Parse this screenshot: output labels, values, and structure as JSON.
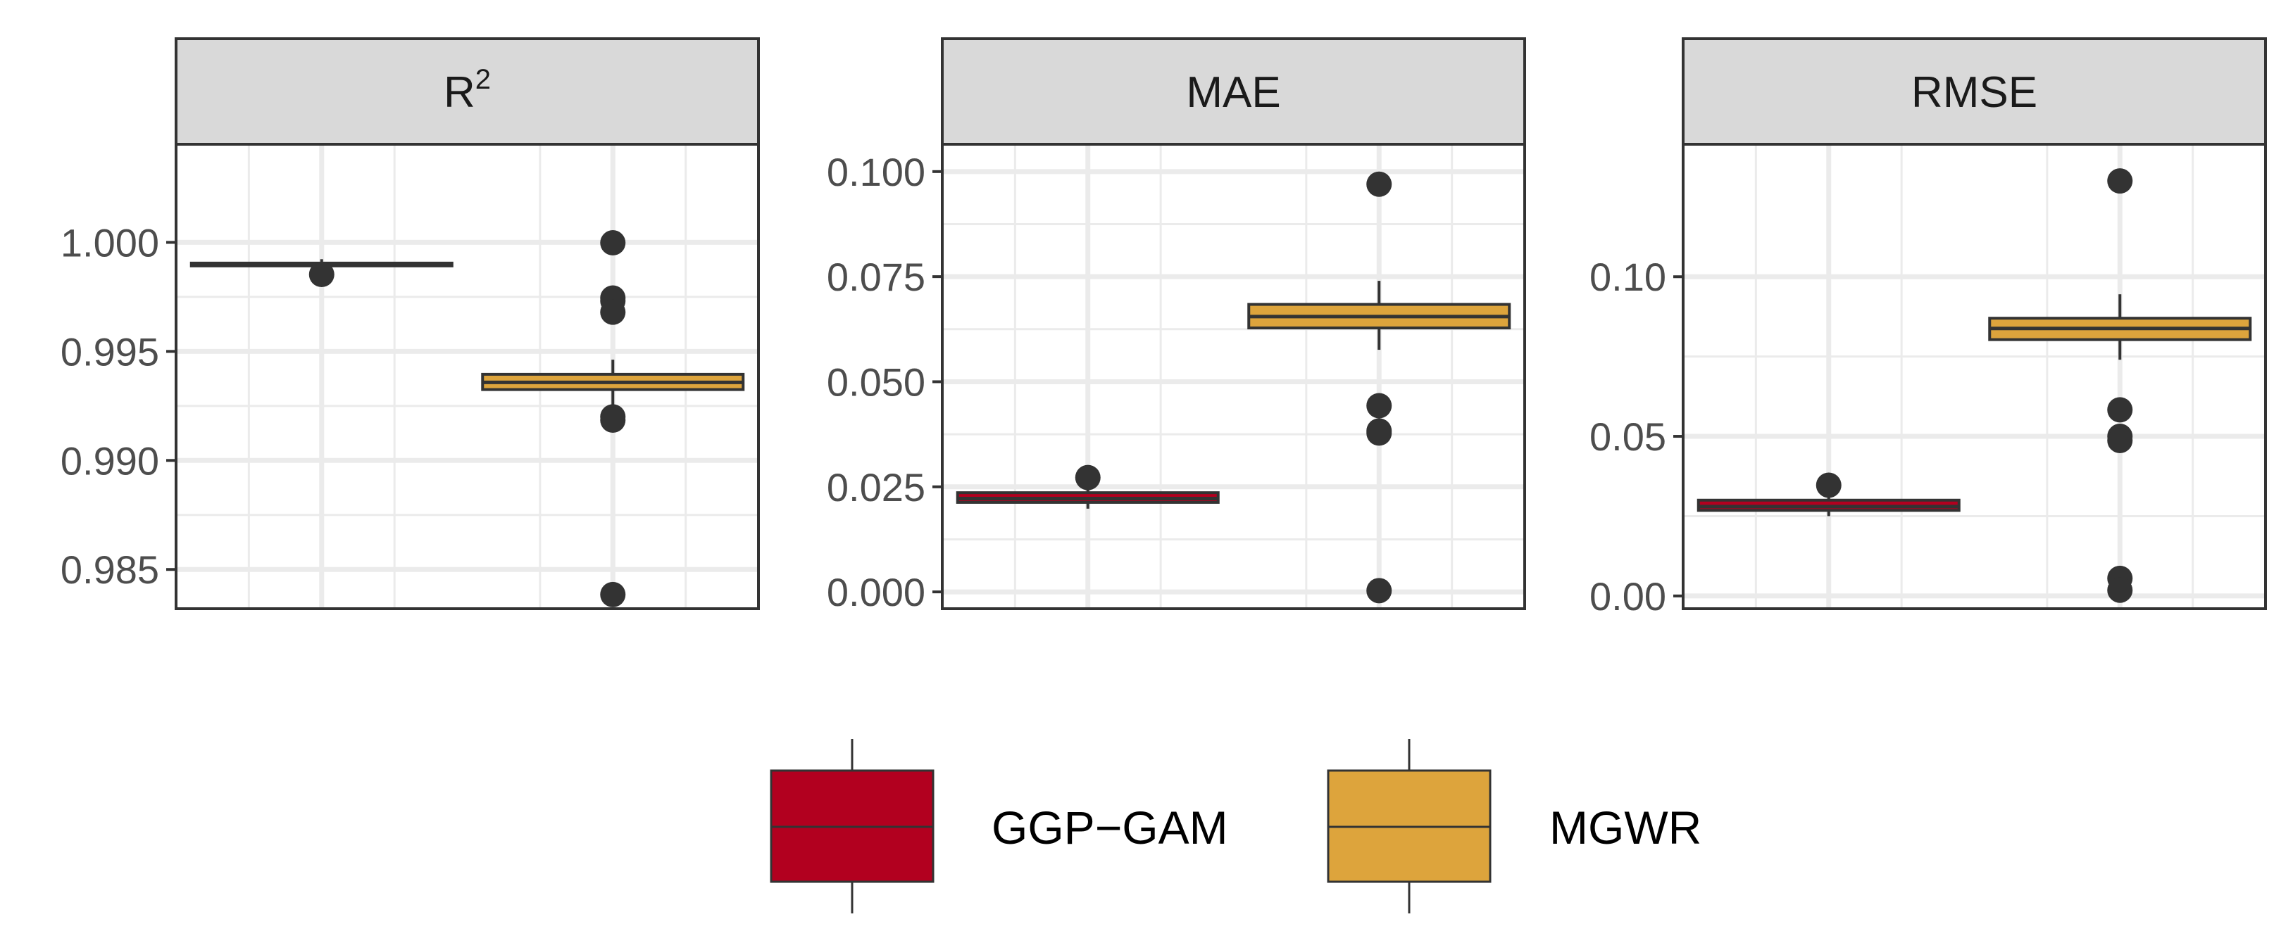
{
  "chart_data": {
    "type": "boxplot",
    "layout": "faceted",
    "colors": {
      "GGP-GAM": "#B2001F",
      "MGWR": "#DDA43C"
    },
    "legend": {
      "position": "bottom",
      "items": [
        {
          "label": "GGP−GAM",
          "color": "#B2001F"
        },
        {
          "label": "MGWR",
          "color": "#DDA43C"
        }
      ]
    },
    "facets": [
      {
        "title": "R",
        "title_superscript": "2",
        "ylim": [
          0.9832,
          1.0045
        ],
        "yticks": [
          0.985,
          0.99,
          0.995,
          1.0
        ],
        "ytick_labels": [
          "0.985",
          "0.990",
          "0.995",
          "1.000"
        ],
        "series": [
          {
            "name": "GGP-GAM",
            "q1": 0.999,
            "median": 0.99902,
            "q3": 0.99905,
            "whisker_low": 0.99895,
            "whisker_high": 0.99923,
            "outliers": [
              0.99853
            ]
          },
          {
            "name": "MGWR",
            "q1": 0.99325,
            "median": 0.99358,
            "q3": 0.99395,
            "whisker_low": 0.9921,
            "whisker_high": 0.99462,
            "outliers": [
              0.99998,
              0.99745,
              0.99732,
              0.9968,
              0.992,
              0.99185,
              0.98385
            ]
          }
        ]
      },
      {
        "title": "MAE",
        "ylim": [
          -0.004,
          0.1065
        ],
        "yticks": [
          0.0,
          0.025,
          0.05,
          0.075,
          0.1
        ],
        "ytick_labels": [
          "0.000",
          "0.025",
          "0.050",
          "0.075",
          "0.100"
        ],
        "series": [
          {
            "name": "GGP-GAM",
            "q1": 0.0213,
            "median": 0.0222,
            "q3": 0.0236,
            "whisker_low": 0.0198,
            "whisker_high": 0.0252,
            "outliers": [
              0.0272
            ]
          },
          {
            "name": "MGWR",
            "q1": 0.0628,
            "median": 0.0655,
            "q3": 0.0684,
            "whisker_low": 0.0576,
            "whisker_high": 0.074,
            "outliers": [
              0.097,
              0.0443,
              0.0383,
              0.0378,
              0.0003
            ]
          }
        ]
      },
      {
        "title": "RMSE",
        "ylim": [
          -0.004,
          0.1415
        ],
        "yticks": [
          0.0,
          0.05,
          0.1
        ],
        "ytick_labels": [
          "0.00",
          "0.05",
          "0.10"
        ],
        "series": [
          {
            "name": "GGP-GAM",
            "q1": 0.0268,
            "median": 0.028,
            "q3": 0.03,
            "whisker_low": 0.025,
            "whisker_high": 0.033,
            "outliers": [
              0.0347
            ]
          },
          {
            "name": "MGWR",
            "q1": 0.0803,
            "median": 0.0838,
            "q3": 0.087,
            "whisker_low": 0.074,
            "whisker_high": 0.0945,
            "outliers": [
              0.13,
              0.0583,
              0.05,
              0.0487,
              0.0055,
              0.0018
            ]
          }
        ]
      }
    ]
  }
}
